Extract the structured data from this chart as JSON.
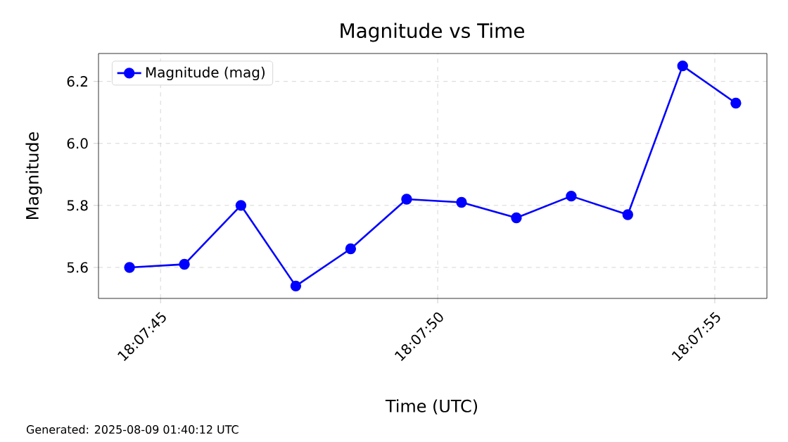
{
  "chart_data": {
    "type": "line",
    "title": "Magnitude vs Time",
    "xlabel": "Time (UTC)",
    "ylabel": "Magnitude",
    "x": [
      18.1290111,
      18.1292861,
      18.1295694,
      18.1298444,
      18.1301194,
      18.1304,
      18.130675,
      18.13095,
      18.131225,
      18.1315083,
      18.1317833,
      18.13205
    ],
    "series": [
      {
        "name": "Magnitude (mag)",
        "color": "#0000ff",
        "values": [
          5.6,
          5.61,
          5.8,
          5.54,
          5.66,
          5.82,
          5.81,
          5.76,
          5.83,
          5.77,
          6.25,
          6.13
        ]
      }
    ],
    "xlim": [
      18.1288556,
      18.1322056
    ],
    "xticks": [
      {
        "value": 18.1291667,
        "label": "18:07:45"
      },
      {
        "value": 18.1305556,
        "label": "18:07:50"
      },
      {
        "value": 18.1319444,
        "label": "18:07:55"
      }
    ],
    "ylim": [
      5.5,
      6.29
    ],
    "yticks": [
      5.6,
      5.8,
      {
        "value": 6,
        "label": "6.0"
      },
      6.2
    ],
    "grid": true,
    "legend": "top left",
    "marker": "circle",
    "line_style": "solid",
    "annotations": [
      "Generated: 2025-08-09 01:40:12 UTC"
    ]
  }
}
